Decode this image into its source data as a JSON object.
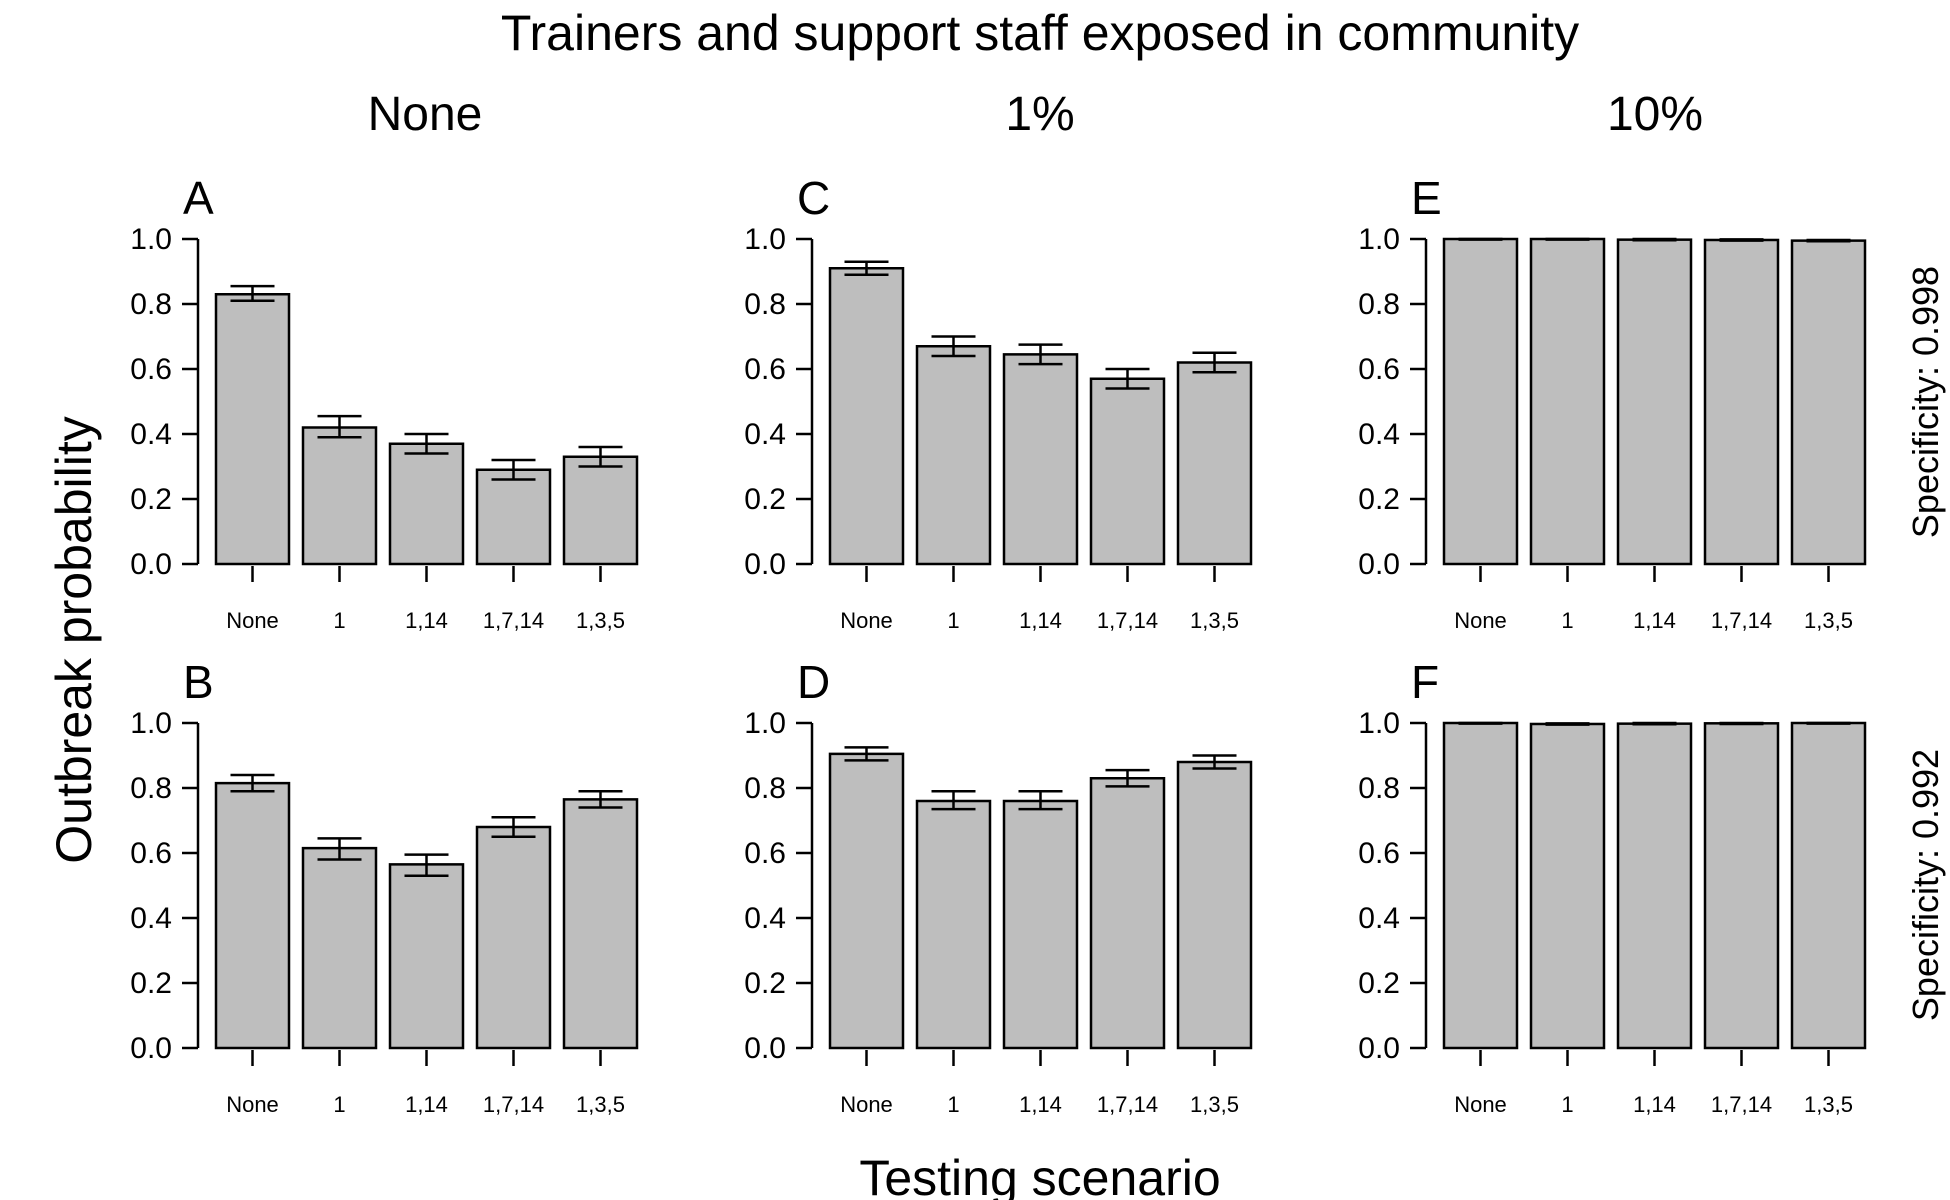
{
  "chart_data": {
    "type": "bar",
    "title": "Trainers and support staff exposed in community",
    "xlabel": "Testing scenario",
    "ylabel": "Outbreak probability",
    "categories": [
      "None",
      "1",
      "1,14",
      "1,7,14",
      "1,3,5"
    ],
    "ylim": [
      0,
      1
    ],
    "yticks": [
      "0.0",
      "0.2",
      "0.4",
      "0.6",
      "0.8",
      "1.0"
    ],
    "column_labels": [
      "None",
      "1%",
      "10%"
    ],
    "row_labels": [
      "Specificity: 0.998",
      "Specificity: 0.992"
    ],
    "colors": {
      "bar": "#bebebe",
      "stroke": "#000000"
    },
    "panels": [
      {
        "label": "A",
        "values": [
          0.83,
          0.42,
          0.37,
          0.29,
          0.33
        ],
        "err_low": [
          0.81,
          0.39,
          0.34,
          0.26,
          0.3
        ],
        "err_high": [
          0.855,
          0.455,
          0.4,
          0.32,
          0.36
        ]
      },
      {
        "label": "B",
        "values": [
          0.815,
          0.615,
          0.565,
          0.68,
          0.765
        ],
        "err_low": [
          0.79,
          0.58,
          0.53,
          0.65,
          0.74
        ],
        "err_high": [
          0.84,
          0.645,
          0.595,
          0.71,
          0.79
        ]
      },
      {
        "label": "C",
        "values": [
          0.91,
          0.67,
          0.645,
          0.57,
          0.62
        ],
        "err_low": [
          0.89,
          0.64,
          0.615,
          0.54,
          0.59
        ],
        "err_high": [
          0.93,
          0.7,
          0.675,
          0.6,
          0.65
        ]
      },
      {
        "label": "D",
        "values": [
          0.905,
          0.76,
          0.76,
          0.83,
          0.88
        ],
        "err_low": [
          0.885,
          0.735,
          0.735,
          0.805,
          0.86
        ],
        "err_high": [
          0.925,
          0.79,
          0.79,
          0.855,
          0.9
        ]
      },
      {
        "label": "E",
        "values": [
          1.0,
          1.0,
          0.998,
          0.997,
          0.995
        ],
        "err_low": [
          0.998,
          0.998,
          0.996,
          0.995,
          0.993
        ],
        "err_high": [
          1.0,
          1.0,
          1.0,
          0.999,
          0.997
        ]
      },
      {
        "label": "F",
        "values": [
          1.0,
          0.997,
          0.998,
          0.999,
          1.0
        ],
        "err_low": [
          0.998,
          0.995,
          0.996,
          0.997,
          0.998
        ],
        "err_high": [
          1.0,
          0.999,
          1.0,
          1.0,
          1.0
        ]
      }
    ]
  }
}
